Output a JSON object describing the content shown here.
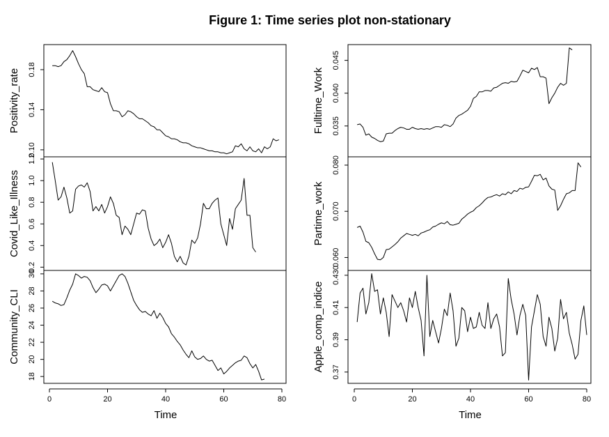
{
  "chart_data": {
    "type": "line",
    "title": "Figure 1: Time series plot non-stationary",
    "x_label": "Time",
    "x_ticks": [
      0,
      20,
      40,
      60,
      80
    ],
    "x_range": [
      0,
      80
    ],
    "panels": [
      {
        "name": "Positivity_rate",
        "ylabel": "Positivity_rate",
        "column": "left",
        "y_ticks": [
          0.1,
          0.14,
          0.18
        ],
        "y_tick_labels": [
          "0.10",
          "0.14",
          "0.18"
        ],
        "y_range": [
          0.093,
          0.205
        ],
        "x_tick_labels": false,
        "values": [
          0.184,
          0.184,
          0.183,
          0.184,
          0.188,
          0.19,
          0.194,
          0.199,
          0.193,
          0.186,
          0.18,
          0.176,
          0.163,
          0.163,
          0.16,
          0.159,
          0.158,
          0.162,
          0.158,
          0.157,
          0.146,
          0.139,
          0.139,
          0.138,
          0.133,
          0.135,
          0.139,
          0.138,
          0.136,
          0.133,
          0.131,
          0.131,
          0.129,
          0.127,
          0.124,
          0.123,
          0.12,
          0.12,
          0.117,
          0.114,
          0.113,
          0.111,
          0.111,
          0.11,
          0.108,
          0.107,
          0.107,
          0.106,
          0.104,
          0.103,
          0.102,
          0.102,
          0.101,
          0.1,
          0.099,
          0.099,
          0.098,
          0.098,
          0.097,
          0.097,
          0.096,
          0.097,
          0.098,
          0.104,
          0.103,
          0.106,
          0.101,
          0.099,
          0.103,
          0.099,
          0.098,
          0.101,
          0.097,
          0.103,
          0.101,
          0.103,
          0.111,
          0.109,
          0.11
        ]
      },
      {
        "name": "Covid_Like_Illness",
        "ylabel": "Covid_Like_Illness",
        "column": "left",
        "y_ticks": [
          0.2,
          0.4,
          0.6,
          0.8,
          1.0,
          1.2
        ],
        "y_tick_labels": [
          "0.2",
          "0.4",
          "0.6",
          "0.8",
          "1.0",
          "1.2"
        ],
        "y_range": [
          0.17,
          1.22
        ],
        "x_tick_labels": false,
        "values": [
          1.17,
          1.0,
          0.82,
          0.85,
          0.94,
          0.84,
          0.7,
          0.72,
          0.92,
          0.95,
          0.96,
          0.94,
          0.98,
          0.9,
          0.72,
          0.76,
          0.72,
          0.78,
          0.7,
          0.76,
          0.85,
          0.79,
          0.68,
          0.66,
          0.5,
          0.58,
          0.55,
          0.5,
          0.6,
          0.7,
          0.69,
          0.73,
          0.72,
          0.56,
          0.46,
          0.4,
          0.42,
          0.46,
          0.38,
          0.43,
          0.5,
          0.42,
          0.3,
          0.25,
          0.3,
          0.24,
          0.22,
          0.3,
          0.45,
          0.42,
          0.47,
          0.6,
          0.79,
          0.74,
          0.74,
          0.79,
          0.82,
          0.84,
          0.6,
          0.5,
          0.4,
          0.65,
          0.55,
          0.74,
          0.78,
          0.82,
          1.02,
          0.68,
          0.68,
          0.38,
          0.34
        ]
      },
      {
        "name": "Community_CLI",
        "ylabel": "Community_CLI",
        "column": "left",
        "y_ticks": [
          18,
          20,
          22,
          24,
          26,
          28,
          30
        ],
        "y_tick_labels": [
          "18",
          "20",
          "22",
          "24",
          "26",
          "28",
          "30"
        ],
        "y_range": [
          17.2,
          30.4
        ],
        "x_tick_labels": true,
        "values": [
          26.8,
          26.6,
          26.5,
          26.3,
          26.4,
          27.2,
          28.1,
          28.8,
          30.0,
          29.8,
          29.5,
          29.7,
          29.6,
          29.2,
          28.4,
          27.8,
          28.2,
          28.7,
          28.8,
          28.6,
          28.0,
          28.6,
          29.2,
          29.8,
          30.0,
          29.7,
          28.9,
          27.9,
          26.9,
          26.3,
          25.8,
          25.5,
          25.6,
          25.3,
          25.1,
          25.7,
          24.8,
          25.4,
          24.9,
          24.2,
          23.8,
          23.0,
          22.6,
          22.1,
          21.7,
          21.1,
          20.6,
          20.2,
          21.0,
          20.3,
          20.0,
          20.1,
          20.4,
          20.0,
          19.8,
          19.9,
          19.3,
          18.7,
          19.0,
          18.3,
          18.6,
          19.0,
          19.3,
          19.6,
          19.8,
          19.9,
          20.4,
          20.2,
          19.5,
          19.0,
          19.4,
          18.6,
          17.6,
          17.7
        ]
      },
      {
        "name": "Fulltime_Work",
        "ylabel": "Fulltime_Work",
        "column": "right",
        "y_ticks": [
          0.035,
          0.04,
          0.045
        ],
        "y_tick_labels": [
          "0.035",
          "0.040",
          "0.045"
        ],
        "y_range": [
          0.0303,
          0.0474
        ],
        "x_tick_labels": false,
        "values": [
          0.0352,
          0.0353,
          0.0348,
          0.0336,
          0.0338,
          0.0333,
          0.0331,
          0.0328,
          0.0326,
          0.0327,
          0.0338,
          0.0339,
          0.0339,
          0.0343,
          0.0346,
          0.0348,
          0.0347,
          0.0345,
          0.0345,
          0.0348,
          0.0346,
          0.0345,
          0.0346,
          0.0345,
          0.0346,
          0.0345,
          0.0347,
          0.0349,
          0.0349,
          0.0348,
          0.0352,
          0.0351,
          0.0349,
          0.0353,
          0.0362,
          0.0366,
          0.0368,
          0.0371,
          0.0374,
          0.038,
          0.0392,
          0.0395,
          0.0402,
          0.0402,
          0.0404,
          0.0404,
          0.0403,
          0.0408,
          0.0409,
          0.0412,
          0.0415,
          0.0416,
          0.0415,
          0.0418,
          0.0417,
          0.0418,
          0.0426,
          0.0435,
          0.0433,
          0.0431,
          0.0438,
          0.0436,
          0.0439,
          0.0425,
          0.0425,
          0.0423,
          0.0384,
          0.0393,
          0.04,
          0.0409,
          0.0415,
          0.0412,
          0.0415,
          0.0469,
          0.0466
        ]
      },
      {
        "name": "Partime_work",
        "ylabel": "Partime_work",
        "column": "right",
        "y_ticks": [
          0.06,
          0.07,
          0.08
        ],
        "y_tick_labels": [
          "0.060",
          "0.070",
          "0.080"
        ],
        "y_range": [
          0.0572,
          0.0818
        ],
        "x_tick_labels": false,
        "values": [
          0.0665,
          0.0668,
          0.0655,
          0.0635,
          0.0632,
          0.0622,
          0.0608,
          0.0596,
          0.0595,
          0.06,
          0.0617,
          0.0618,
          0.0623,
          0.0628,
          0.0634,
          0.0642,
          0.0647,
          0.0652,
          0.065,
          0.0648,
          0.065,
          0.0647,
          0.0653,
          0.0655,
          0.0658,
          0.066,
          0.0666,
          0.0668,
          0.0672,
          0.0675,
          0.0673,
          0.0678,
          0.0671,
          0.067,
          0.0672,
          0.0674,
          0.0683,
          0.0688,
          0.0694,
          0.0698,
          0.0701,
          0.0708,
          0.0712,
          0.0718,
          0.0725,
          0.073,
          0.0731,
          0.0734,
          0.0736,
          0.0733,
          0.0738,
          0.0736,
          0.0742,
          0.0738,
          0.0745,
          0.0743,
          0.075,
          0.0748,
          0.0752,
          0.0753,
          0.0765,
          0.0778,
          0.0777,
          0.078,
          0.0768,
          0.0772,
          0.0755,
          0.0748,
          0.0746,
          0.0702,
          0.0712,
          0.0726,
          0.0738,
          0.074,
          0.0745,
          0.0745,
          0.0805,
          0.0796
        ]
      },
      {
        "name": "Apple_comp_indice",
        "ylabel": "Apple_comp_indice",
        "column": "right",
        "y_ticks": [
          0.37,
          0.39,
          0.41,
          0.43
        ],
        "y_tick_labels": [
          "0.37",
          "0.39",
          "0.41",
          "0.430"
        ],
        "y_range": [
          0.363,
          0.433
        ],
        "x_tick_labels": true,
        "values": [
          0.401,
          0.419,
          0.422,
          0.406,
          0.413,
          0.431,
          0.42,
          0.421,
          0.406,
          0.416,
          0.407,
          0.392,
          0.418,
          0.414,
          0.41,
          0.413,
          0.408,
          0.401,
          0.416,
          0.41,
          0.42,
          0.41,
          0.402,
          0.38,
          0.43,
          0.392,
          0.402,
          0.395,
          0.388,
          0.397,
          0.409,
          0.405,
          0.419,
          0.408,
          0.386,
          0.391,
          0.41,
          0.408,
          0.395,
          0.404,
          0.397,
          0.398,
          0.407,
          0.399,
          0.397,
          0.413,
          0.397,
          0.403,
          0.406,
          0.398,
          0.38,
          0.382,
          0.428,
          0.415,
          0.406,
          0.393,
          0.405,
          0.412,
          0.405,
          0.365,
          0.398,
          0.408,
          0.418,
          0.412,
          0.392,
          0.386,
          0.404,
          0.397,
          0.383,
          0.391,
          0.415,
          0.403,
          0.407,
          0.394,
          0.387,
          0.378,
          0.381,
          0.402,
          0.411,
          0.393
        ]
      }
    ]
  }
}
